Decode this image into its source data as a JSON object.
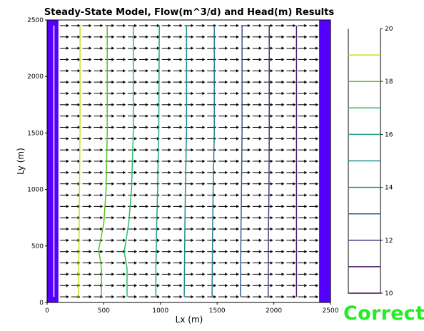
{
  "chart_data": {
    "type": "contour",
    "title": "Steady-State Model, Flow(m^3/d) and Head(m) Results",
    "xlabel": "Lx (m)",
    "ylabel": "Ly (m)",
    "xlim": [
      0,
      2500
    ],
    "ylim": [
      0,
      2500
    ],
    "x_ticks": [
      0,
      500,
      1000,
      1500,
      2000,
      2500
    ],
    "y_ticks": [
      0,
      500,
      1000,
      1500,
      2000,
      2500
    ],
    "boundary_color": "#5500ff",
    "boundary_cells": [
      [
        0,
        100
      ],
      [
        2400,
        2500
      ]
    ],
    "contours": [
      {
        "level": 20,
        "color": "#fefeff",
        "points": [
          [
            60,
            2450
          ],
          [
            60,
            50
          ]
        ]
      },
      {
        "level": 19,
        "color": "#c8e020",
        "points": [
          [
            290,
            2450
          ],
          [
            290,
            1500
          ],
          [
            285,
            1000
          ],
          [
            282,
            600
          ],
          [
            280,
            450
          ],
          [
            278,
            50
          ]
        ]
      },
      {
        "level": 18,
        "color": "#56c32c",
        "points": [
          [
            530,
            2450
          ],
          [
            530,
            1500
          ],
          [
            520,
            1000
          ],
          [
            500,
            700
          ],
          [
            455,
            470
          ],
          [
            480,
            300
          ],
          [
            480,
            50
          ]
        ]
      },
      {
        "level": 17,
        "color": "#2bbd6a",
        "points": [
          [
            760,
            2450
          ],
          [
            760,
            1500
          ],
          [
            745,
            1000
          ],
          [
            720,
            700
          ],
          [
            680,
            450
          ],
          [
            705,
            300
          ],
          [
            705,
            50
          ]
        ]
      },
      {
        "level": 16,
        "color": "#20a388",
        "points": [
          [
            990,
            2450
          ],
          [
            985,
            1500
          ],
          [
            975,
            1000
          ],
          [
            965,
            600
          ],
          [
            960,
            300
          ],
          [
            960,
            50
          ]
        ]
      },
      {
        "level": 15,
        "color": "#1f8f8c",
        "points": [
          [
            1230,
            2450
          ],
          [
            1230,
            1500
          ],
          [
            1220,
            1000
          ],
          [
            1215,
            600
          ],
          [
            1210,
            50
          ]
        ]
      },
      {
        "level": 14,
        "color": "#277f8e",
        "points": [
          [
            1475,
            2450
          ],
          [
            1475,
            1500
          ],
          [
            1465,
            1000
          ],
          [
            1460,
            600
          ],
          [
            1455,
            50
          ]
        ]
      },
      {
        "level": 13,
        "color": "#365c8d",
        "points": [
          [
            1720,
            2450
          ],
          [
            1720,
            1500
          ],
          [
            1715,
            1000
          ],
          [
            1710,
            600
          ],
          [
            1705,
            50
          ]
        ]
      },
      {
        "level": 12,
        "color": "#443983",
        "points": [
          [
            1960,
            2450
          ],
          [
            1960,
            1500
          ],
          [
            1957,
            1000
          ],
          [
            1953,
            600
          ],
          [
            1950,
            50
          ]
        ]
      },
      {
        "level": 11,
        "color": "#481568",
        "points": [
          [
            2200,
            2450
          ],
          [
            2200,
            1500
          ],
          [
            2200,
            1000
          ],
          [
            2200,
            600
          ],
          [
            2200,
            50
          ]
        ]
      }
    ],
    "quiver": {
      "x_start": 150,
      "x_end": 2350,
      "x_step": 100,
      "y_start": 50,
      "y_end": 2450,
      "y_step": 100,
      "direction": "east",
      "color": "#000000"
    },
    "colorbar": {
      "min": 10,
      "max": 20,
      "levels": [
        20,
        19,
        18,
        17,
        16,
        15,
        14,
        13,
        12,
        11,
        10
      ],
      "tick_labels": [
        20,
        18,
        16,
        14,
        12,
        10
      ],
      "colors": [
        "#fefeff",
        "#c8e020",
        "#56c32c",
        "#2bbd6a",
        "#20a388",
        "#1f8f8c",
        "#277f8e",
        "#365c8d",
        "#443983",
        "#481568",
        "#440154"
      ]
    }
  },
  "status_text": "Correct"
}
